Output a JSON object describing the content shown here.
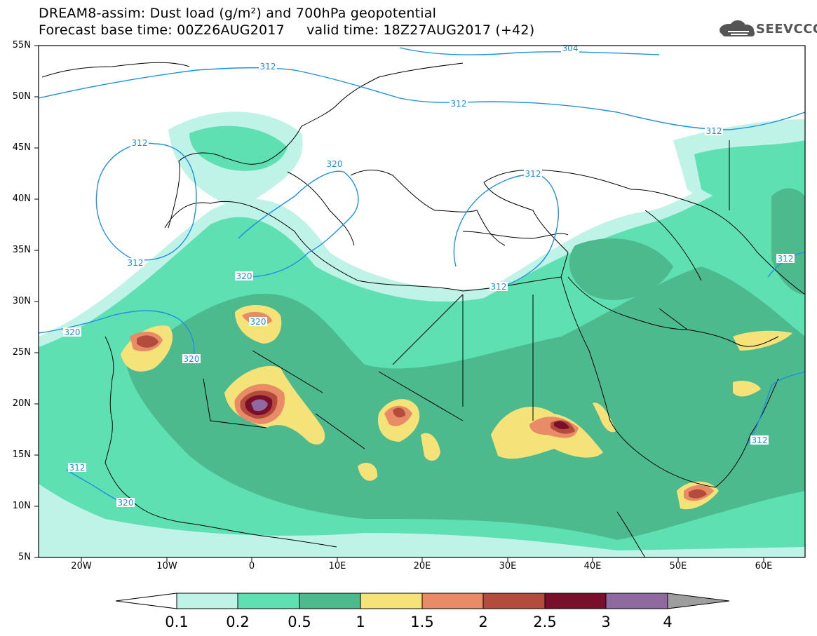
{
  "header": {
    "line1": "DREAM8-assim: Dust load (g/m²) and 700hPa geopotential",
    "line2": "Forecast base time: 00Z26AUG2017     valid time: 18Z27AUG2017 (+42)"
  },
  "logo": {
    "text": "SEEVCCC",
    "icon": "cloud-logo-icon"
  },
  "map": {
    "lat_labels": [
      "55N",
      "50N",
      "45N",
      "40N",
      "35N",
      "30N",
      "25N",
      "20N",
      "15N",
      "10N",
      "5N"
    ],
    "lon_labels": [
      "20W",
      "10W",
      "0",
      "10E",
      "20E",
      "30E",
      "40E",
      "50E",
      "60E"
    ],
    "contour_labels": [
      "304",
      "312",
      "312",
      "312",
      "312",
      "312",
      "312",
      "312",
      "312",
      "312",
      "312",
      "320",
      "320",
      "320",
      "320",
      "320",
      "320"
    ]
  },
  "colorbar": {
    "labels": [
      "0.1",
      "0.2",
      "0.5",
      "1",
      "1.5",
      "2",
      "2.5",
      "3",
      "4"
    ],
    "colors": [
      "#ffffff",
      "#bff3e8",
      "#5fe0b3",
      "#4dba8e",
      "#f5e37a",
      "#e88b66",
      "#b34c3d",
      "#7a0f2b",
      "#8e6aa0",
      "#9e9e9e"
    ]
  },
  "colors": {
    "contour": "#1e90e0",
    "coast": "#000000",
    "dust_light": "#bff3e8",
    "dust_mid": "#5fe0b3",
    "dust_dark": "#4dba8e",
    "dust_yellow": "#f5e37a",
    "dust_orange": "#e88b66",
    "dust_red": "#b34c3d",
    "dust_maroon": "#7a0f2b",
    "dust_purple": "#8e6aa0"
  }
}
